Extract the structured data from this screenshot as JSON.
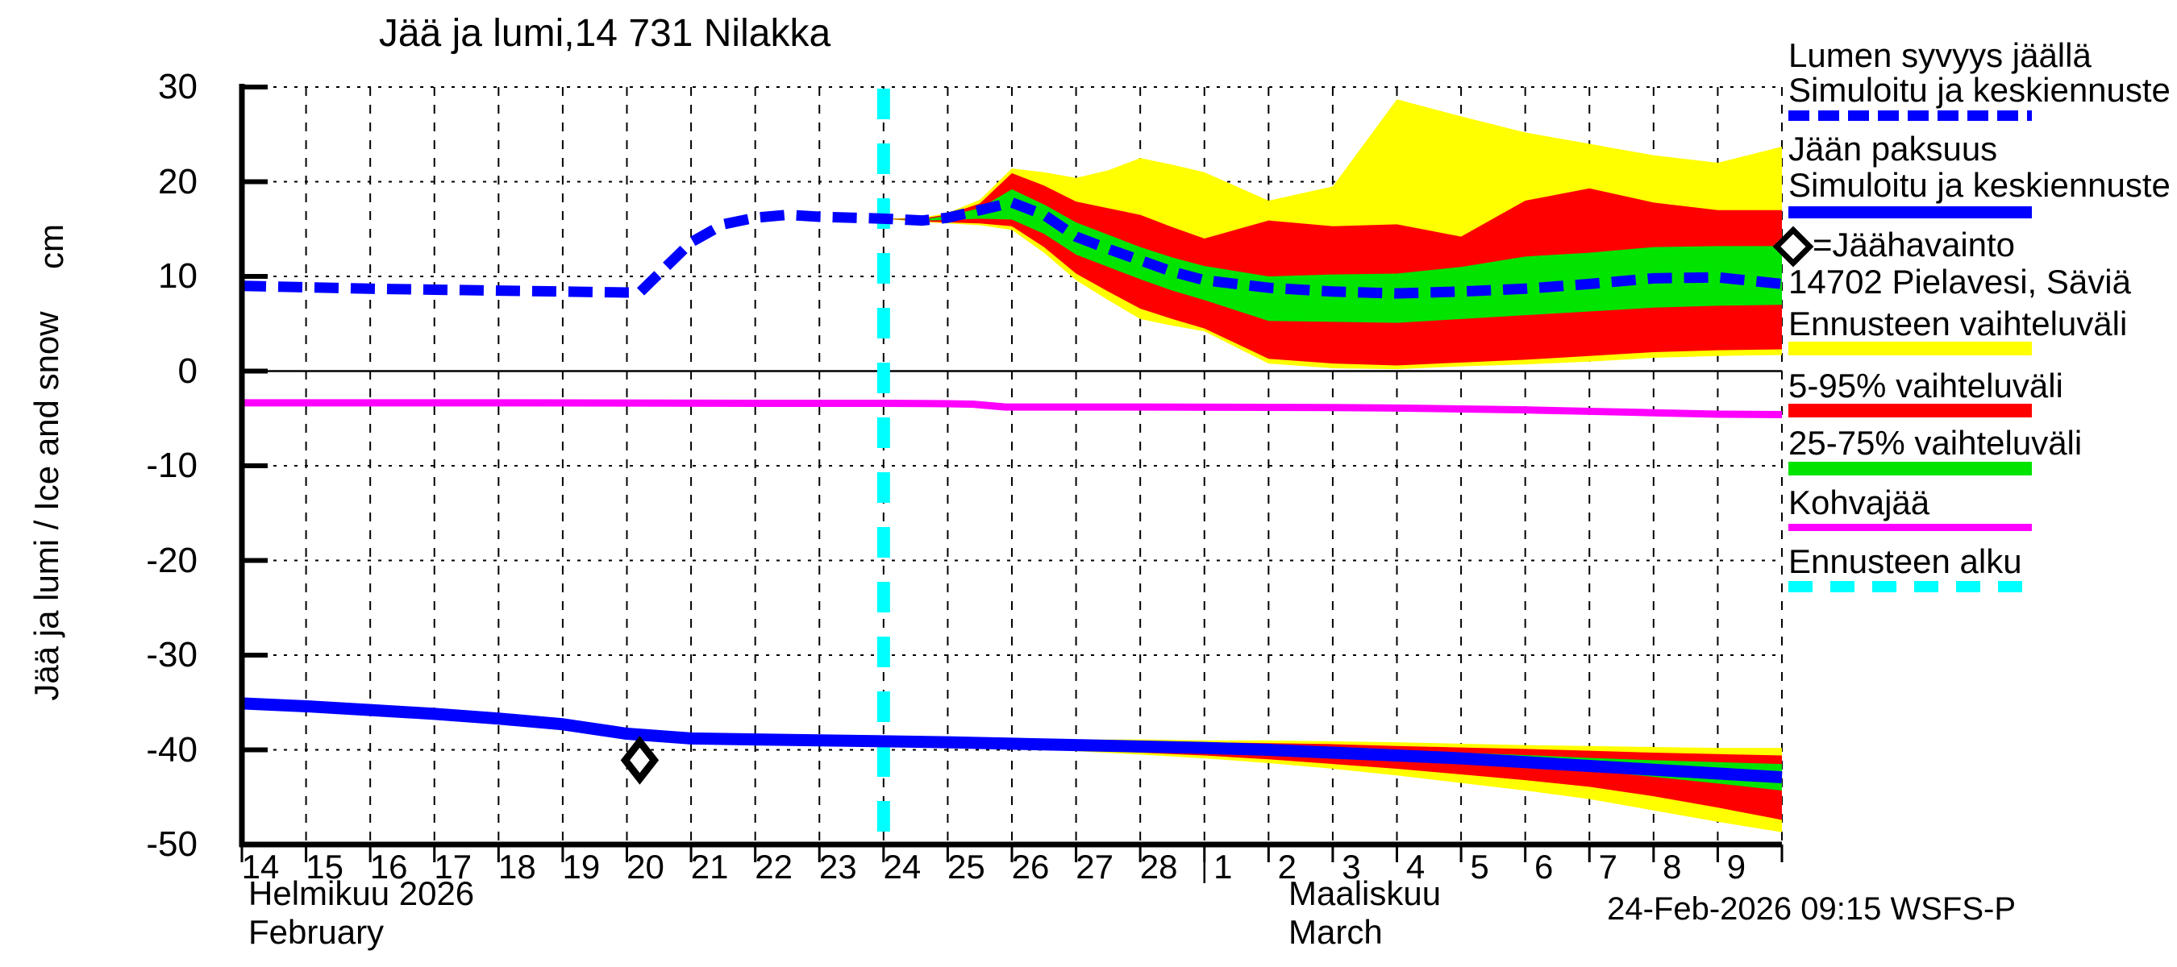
{
  "title": "Jää ja lumi,14 731 Nilakka",
  "y_axis": {
    "rotated_label": "Jää ja lumi / Ice and snow",
    "unit_label": "cm",
    "tick_labels": [
      "30",
      "20",
      "10",
      "0",
      "-10",
      "-20",
      "-30",
      "-40",
      "-50"
    ]
  },
  "x_axis": {
    "tick_labels": [
      "14",
      "15",
      "16",
      "17",
      "18",
      "19",
      "20",
      "21",
      "22",
      "23",
      "24",
      "25",
      "26",
      "27",
      "28",
      "1",
      "2",
      "3",
      "4",
      "5",
      "6",
      "7",
      "8",
      "9"
    ],
    "month_left_fi": "Helmikuu 2026",
    "month_left_en": "February",
    "month_right_fi": "Maaliskuu",
    "month_right_en": "March"
  },
  "footer": {
    "timestamp": "24-Feb-2026 09:15 WSFS-P"
  },
  "legend": {
    "items": [
      {
        "id": "snow-depth",
        "lines": [
          "Lumen syvyys jäällä",
          "Simuloitu ja keskiennuste"
        ],
        "swatch": "dashed-blue",
        "color": "#0000ff",
        "text_tops": [
          46,
          89
        ],
        "swatch_top": 137
      },
      {
        "id": "ice-thickness",
        "lines": [
          "Jään paksuus",
          "Simuloitu ja keskiennuste"
        ],
        "swatch": "solid-blue",
        "color": "#0000ff",
        "text_tops": [
          162,
          207
        ],
        "swatch_top": 256
      },
      {
        "id": "ice-observation",
        "lines": [
          "=Jäähavainto",
          "14702 Pielavesi, Säviä"
        ],
        "swatch": "diamond",
        "color": "#000000",
        "text_tops": [
          281,
          327
        ],
        "swatch_top": 288
      },
      {
        "id": "forecast-range",
        "lines": [
          "Ennusteen vaihteluväli"
        ],
        "swatch": "bar",
        "color": "#ffff00",
        "text_tops": [
          379
        ],
        "swatch_top": 424
      },
      {
        "id": "range-5-95",
        "lines": [
          "5-95% vaihteluväli"
        ],
        "swatch": "bar",
        "color": "#ff0000",
        "text_tops": [
          456
        ],
        "swatch_top": 501
      },
      {
        "id": "range-25-75",
        "lines": [
          "25-75% vaihteluväli"
        ],
        "swatch": "bar",
        "color": "#00e400",
        "text_tops": [
          527
        ],
        "swatch_top": 573
      },
      {
        "id": "kohvajaa",
        "lines": [
          "Kohvajää"
        ],
        "swatch": "line",
        "color": "#ff00ff",
        "text_tops": [
          601
        ],
        "swatch_top": 650
      },
      {
        "id": "forecast-start",
        "lines": [
          "Ennusteen alku"
        ],
        "swatch": "dashed-cyan",
        "color": "#00ffff",
        "text_tops": [
          674
        ],
        "swatch_top": 721
      }
    ]
  },
  "chart_data": {
    "type": "line",
    "title": "Jää ja lumi,14 731 Nilakka",
    "ylabel": "Jää ja lumi / Ice and snow (cm)",
    "x_unit": "days, 0 = 14-Feb-2026, 24 = 10-Mar-2026",
    "x_domain": [
      0,
      24
    ],
    "ylim": [
      -50,
      30
    ],
    "y_gridlines": [
      30,
      20,
      10,
      0,
      -10,
      -20,
      -30,
      -40,
      -50
    ],
    "forecast_start_x": 10,
    "month_boundary_x": 15,
    "observation": {
      "x": 6.2,
      "y": -41.1,
      "label": "Jäähavainto 14702 Pielavesi, Säviä"
    },
    "colors": {
      "median": "#0000ff",
      "outer_band": "#ffff00",
      "band_5_95": "#ff0000",
      "band_25_75": "#00e400",
      "kohvajaa": "#ff00ff",
      "forecast_start": "#00ffff",
      "grid": "#000000"
    },
    "series": [
      {
        "name": "Lumen syvyys jäällä (simuloitu ja keskiennuste)",
        "style": "dashed",
        "points": [
          [
            0,
            9.0
          ],
          [
            1,
            8.85
          ],
          [
            2,
            8.7
          ],
          [
            3,
            8.6
          ],
          [
            4,
            8.5
          ],
          [
            5,
            8.4
          ],
          [
            6,
            8.3
          ],
          [
            6.2,
            8.3
          ],
          [
            7,
            13.6
          ],
          [
            7.5,
            15.5
          ],
          [
            8,
            16.2
          ],
          [
            8.5,
            16.5
          ],
          [
            9,
            16.3
          ],
          [
            10,
            16.1
          ],
          [
            10.6,
            15.9
          ],
          [
            11,
            16.2
          ],
          [
            11.5,
            17.0
          ],
          [
            12,
            17.8
          ],
          [
            12.5,
            16.5
          ],
          [
            13,
            14.2
          ],
          [
            13.5,
            12.9
          ],
          [
            14,
            11.7
          ],
          [
            14.5,
            10.5
          ],
          [
            15,
            9.6
          ],
          [
            16,
            8.8
          ],
          [
            17,
            8.4
          ],
          [
            18,
            8.2
          ],
          [
            19,
            8.4
          ],
          [
            20,
            8.7
          ],
          [
            21,
            9.2
          ],
          [
            22,
            9.8
          ],
          [
            23,
            9.9
          ],
          [
            24,
            9.2
          ]
        ]
      },
      {
        "name": "Jään paksuus (simuloitu ja keskiennuste)",
        "style": "solid",
        "points": [
          [
            0,
            -35.1
          ],
          [
            1,
            -35.4
          ],
          [
            2,
            -35.8
          ],
          [
            3,
            -36.2
          ],
          [
            4,
            -36.7
          ],
          [
            5,
            -37.3
          ],
          [
            6,
            -38.3
          ],
          [
            7,
            -38.8
          ],
          [
            8,
            -38.9
          ],
          [
            9,
            -39.0
          ],
          [
            10,
            -39.1
          ],
          [
            11,
            -39.2
          ],
          [
            12,
            -39.35
          ],
          [
            13,
            -39.5
          ],
          [
            14,
            -39.65
          ],
          [
            15,
            -39.8
          ],
          [
            16,
            -40.0
          ],
          [
            17,
            -40.3
          ],
          [
            18,
            -40.6
          ],
          [
            19,
            -40.9
          ],
          [
            20,
            -41.3
          ],
          [
            21,
            -41.7
          ],
          [
            22,
            -42.1
          ],
          [
            23,
            -42.5
          ],
          [
            24,
            -42.9
          ]
        ]
      },
      {
        "name": "Kohvajää",
        "style": "solid-magenta",
        "points": [
          [
            0,
            -3.35
          ],
          [
            4,
            -3.35
          ],
          [
            8,
            -3.4
          ],
          [
            10,
            -3.4
          ],
          [
            11,
            -3.45
          ],
          [
            11.4,
            -3.5
          ],
          [
            11.9,
            -3.8
          ],
          [
            14,
            -3.8
          ],
          [
            17,
            -3.85
          ],
          [
            18,
            -3.9
          ],
          [
            19,
            -4.0
          ],
          [
            20,
            -4.1
          ],
          [
            21,
            -4.25
          ],
          [
            22,
            -4.4
          ],
          [
            23,
            -4.55
          ],
          [
            24,
            -4.6
          ]
        ]
      }
    ],
    "bands_format": "[x, yellow_top, red_top, green_top, green_bottom, red_bottom, yellow_bottom]",
    "snow_band": [
      [
        10,
        16.1,
        16.1,
        16.1,
        16.1,
        16.1,
        16.1
      ],
      [
        10.6,
        16.2,
        16.1,
        16.0,
        15.9,
        15.8,
        15.75
      ],
      [
        11,
        16.7,
        16.55,
        16.4,
        15.95,
        15.7,
        15.6
      ],
      [
        11.5,
        18.1,
        17.7,
        17.2,
        16.1,
        15.6,
        15.4
      ],
      [
        12,
        21.4,
        20.9,
        19.2,
        16.0,
        15.3,
        14.9
      ],
      [
        12.5,
        21.0,
        19.6,
        17.6,
        14.5,
        13.1,
        12.5
      ],
      [
        13,
        20.4,
        17.9,
        15.7,
        12.3,
        10.3,
        9.6
      ],
      [
        13.5,
        21.2,
        17.2,
        14.4,
        11.0,
        8.4,
        7.5
      ],
      [
        14,
        22.5,
        16.5,
        13.1,
        9.7,
        6.6,
        5.5
      ],
      [
        14.5,
        21.8,
        15.2,
        12.0,
        8.5,
        5.5,
        4.8
      ],
      [
        15,
        21.0,
        14.0,
        11.1,
        7.5,
        4.5,
        4.2
      ],
      [
        16,
        18.0,
        15.9,
        10.0,
        5.3,
        1.3,
        0.8
      ],
      [
        17,
        19.5,
        15.3,
        10.2,
        5.2,
        0.8,
        0.3
      ],
      [
        18,
        28.7,
        15.5,
        10.3,
        5.1,
        0.6,
        0.2
      ],
      [
        19,
        26.9,
        14.2,
        11.0,
        5.5,
        0.9,
        0.5
      ],
      [
        20,
        25.2,
        18.0,
        12.1,
        5.9,
        1.2,
        0.7
      ],
      [
        21,
        24.0,
        19.3,
        12.5,
        6.3,
        1.6,
        1.0
      ],
      [
        22,
        22.8,
        17.8,
        13.1,
        6.7,
        2.0,
        1.4
      ],
      [
        23,
        22.0,
        17.0,
        13.2,
        6.9,
        2.2,
        1.6
      ],
      [
        24,
        23.7,
        17.0,
        13.2,
        7.0,
        2.3,
        1.7
      ]
    ],
    "ice_band": [
      [
        10,
        -39.1,
        -39.1,
        -39.1,
        -39.1,
        -39.1,
        -39.1
      ],
      [
        11,
        -39.0,
        -39.1,
        -39.15,
        -39.3,
        -39.4,
        -39.45
      ],
      [
        12,
        -38.9,
        -39.0,
        -39.2,
        -39.5,
        -39.7,
        -39.8
      ],
      [
        13,
        -38.9,
        -39.05,
        -39.3,
        -39.7,
        -40.0,
        -40.15
      ],
      [
        14,
        -38.9,
        -39.1,
        -39.4,
        -39.9,
        -40.3,
        -40.5
      ],
      [
        15,
        -39.0,
        -39.2,
        -39.5,
        -40.1,
        -40.6,
        -40.9
      ],
      [
        16,
        -39.0,
        -39.3,
        -39.7,
        -40.35,
        -41.0,
        -41.4
      ],
      [
        17,
        -39.1,
        -39.4,
        -39.9,
        -40.7,
        -41.5,
        -42.0
      ],
      [
        18,
        -39.2,
        -39.6,
        -40.1,
        -41.1,
        -42.0,
        -42.7
      ],
      [
        19,
        -39.35,
        -39.75,
        -40.3,
        -41.4,
        -42.6,
        -43.5
      ],
      [
        20,
        -39.5,
        -39.9,
        -40.55,
        -41.8,
        -43.2,
        -44.3
      ],
      [
        21,
        -39.6,
        -40.1,
        -40.85,
        -42.2,
        -43.9,
        -45.2
      ],
      [
        22,
        -39.7,
        -40.3,
        -41.1,
        -42.85,
        -44.9,
        -46.4
      ],
      [
        23,
        -39.8,
        -40.45,
        -41.3,
        -43.55,
        -46.1,
        -47.6
      ],
      [
        24,
        -39.8,
        -40.6,
        -41.5,
        -44.3,
        -47.4,
        -48.7
      ]
    ]
  }
}
